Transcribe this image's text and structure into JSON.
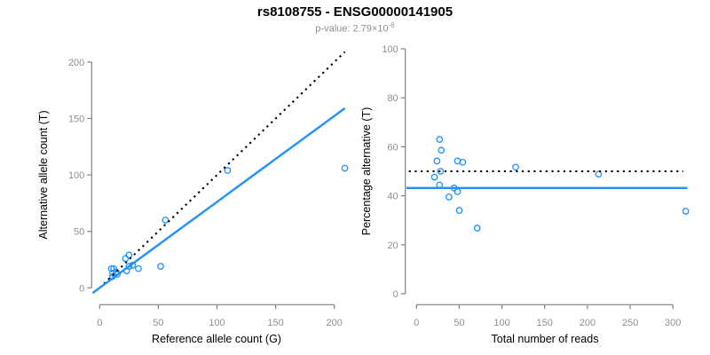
{
  "figure": {
    "title": "rs8108755 - ENSG00000141905",
    "pvalue_prefix": "p-value: 2.79×10",
    "pvalue_exponent": "-6",
    "colors": {
      "accent_blue": "#1E90FF",
      "line_black": "#000000",
      "axis_gray": "#808080",
      "tick_label_gray": "#909090"
    }
  },
  "chart_data": [
    {
      "type": "scatter",
      "panel": "left",
      "xlabel": "Reference allele count (G)",
      "ylabel": "Alternative allele count (T)",
      "xlim": [
        0,
        200
      ],
      "ylim": [
        0,
        200
      ],
      "xticks": [
        0,
        50,
        100,
        150,
        200
      ],
      "yticks": [
        0,
        50,
        100,
        150,
        200
      ],
      "grid": false,
      "point_color": "#1E90FF",
      "points": [
        [
          10,
          17
        ],
        [
          12,
          17
        ],
        [
          11,
          13
        ],
        [
          22,
          26
        ],
        [
          25,
          29
        ],
        [
          56,
          60
        ],
        [
          14,
          14
        ],
        [
          11,
          10
        ],
        [
          109,
          104
        ],
        [
          15,
          12
        ],
        [
          25,
          19
        ],
        [
          28,
          20
        ],
        [
          23,
          15
        ],
        [
          33,
          17
        ],
        [
          209,
          106
        ],
        [
          52,
          19
        ]
      ],
      "lines": [
        {
          "name": "expected-50pct-identity",
          "style": "dotted",
          "color": "#000000",
          "slope": 1,
          "intercept": 0,
          "x_range": [
            0,
            209
          ]
        },
        {
          "name": "fitted-allelic-ratio",
          "style": "solid",
          "color": "#1E90FF",
          "slope": 0.761,
          "intercept": 0,
          "x_range": [
            -6,
            209
          ]
        }
      ]
    },
    {
      "type": "scatter",
      "panel": "right",
      "xlabel": "Total number of reads",
      "ylabel": "Percentage alternative (T)",
      "xlim": [
        0,
        315
      ],
      "ylim": [
        0,
        100
      ],
      "xticks": [
        0,
        50,
        100,
        150,
        200,
        250,
        300
      ],
      "yticks": [
        0,
        20,
        40,
        60,
        80,
        100
      ],
      "grid": false,
      "point_color": "#1E90FF",
      "points": [
        [
          27,
          63.0
        ],
        [
          29,
          58.6
        ],
        [
          24,
          54.2
        ],
        [
          48,
          54.2
        ],
        [
          54,
          53.7
        ],
        [
          116,
          51.7
        ],
        [
          28,
          50.0
        ],
        [
          21,
          47.6
        ],
        [
          213,
          48.8
        ],
        [
          27,
          44.4
        ],
        [
          44,
          43.2
        ],
        [
          48,
          41.7
        ],
        [
          38,
          39.5
        ],
        [
          50,
          34.0
        ],
        [
          315,
          33.7
        ],
        [
          71,
          26.8
        ]
      ],
      "lines": [
        {
          "name": "expected-50pct",
          "style": "dotted",
          "color": "#000000",
          "y": 50,
          "x_range": [
            -9,
            312
          ]
        },
        {
          "name": "observed-mean-pct",
          "style": "solid",
          "color": "#1E90FF",
          "y": 43.2,
          "x_range": [
            -12,
            317
          ]
        }
      ]
    }
  ]
}
